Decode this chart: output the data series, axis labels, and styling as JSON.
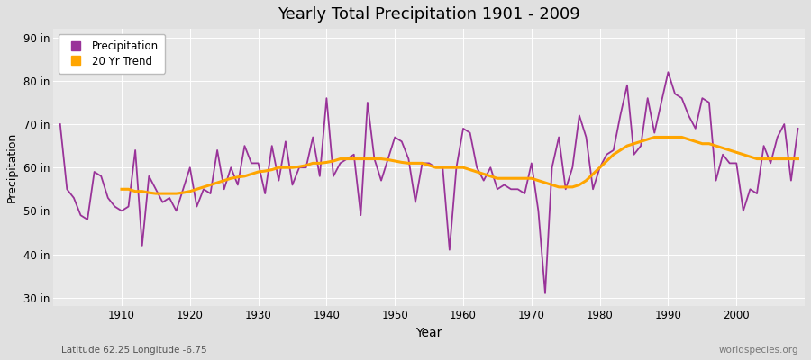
{
  "title": "Yearly Total Precipitation 1901 - 2009",
  "xlabel": "Year",
  "ylabel": "Precipitation",
  "bottom_left": "Latitude 62.25 Longitude -6.75",
  "bottom_right": "worldspecies.org",
  "precip_color": "#993399",
  "trend_color": "#FFA500",
  "fig_bg_color": "#E0E0E0",
  "plot_bg_color": "#E8E8E8",
  "ylim": [
    28,
    92
  ],
  "yticks": [
    30,
    40,
    50,
    60,
    70,
    80,
    90
  ],
  "ytick_labels": [
    "30 in",
    "40 in",
    "50 in",
    "60 in",
    "70 in",
    "80 in",
    "90 in"
  ],
  "xlim": [
    1900,
    2010
  ],
  "xticks": [
    1910,
    1920,
    1930,
    1940,
    1950,
    1960,
    1970,
    1980,
    1990,
    2000
  ],
  "years": [
    1901,
    1902,
    1903,
    1904,
    1905,
    1906,
    1907,
    1908,
    1909,
    1910,
    1911,
    1912,
    1913,
    1914,
    1915,
    1916,
    1917,
    1918,
    1919,
    1920,
    1921,
    1922,
    1923,
    1924,
    1925,
    1926,
    1927,
    1928,
    1929,
    1930,
    1931,
    1932,
    1933,
    1934,
    1935,
    1936,
    1937,
    1938,
    1939,
    1940,
    1941,
    1942,
    1943,
    1944,
    1945,
    1946,
    1947,
    1948,
    1949,
    1950,
    1951,
    1952,
    1953,
    1954,
    1955,
    1956,
    1957,
    1958,
    1959,
    1960,
    1961,
    1962,
    1963,
    1964,
    1965,
    1966,
    1967,
    1968,
    1969,
    1970,
    1971,
    1972,
    1973,
    1974,
    1975,
    1976,
    1977,
    1978,
    1979,
    1980,
    1981,
    1982,
    1983,
    1984,
    1985,
    1986,
    1987,
    1988,
    1989,
    1990,
    1991,
    1992,
    1993,
    1994,
    1995,
    1996,
    1997,
    1998,
    1999,
    2000,
    2001,
    2002,
    2003,
    2004,
    2005,
    2006,
    2007,
    2008,
    2009
  ],
  "precip": [
    70,
    55,
    53,
    49,
    48,
    59,
    58,
    53,
    51,
    50,
    51,
    64,
    42,
    58,
    55,
    52,
    53,
    50,
    55,
    60,
    51,
    55,
    54,
    64,
    55,
    60,
    56,
    65,
    61,
    61,
    54,
    65,
    57,
    66,
    56,
    60,
    60,
    67,
    58,
    76,
    58,
    61,
    62,
    63,
    49,
    75,
    62,
    57,
    62,
    67,
    66,
    62,
    52,
    61,
    61,
    60,
    60,
    41,
    60,
    69,
    68,
    60,
    57,
    60,
    55,
    56,
    55,
    55,
    54,
    61,
    50,
    31,
    60,
    67,
    55,
    60,
    72,
    67,
    55,
    60,
    63,
    64,
    72,
    79,
    63,
    65,
    76,
    68,
    75,
    82,
    77,
    76,
    72,
    69,
    76,
    75,
    57,
    63,
    61,
    61,
    50,
    55,
    54,
    65,
    61,
    67,
    70,
    57,
    69
  ],
  "trend_years": [
    1910,
    1911,
    1912,
    1913,
    1914,
    1915,
    1916,
    1917,
    1918,
    1919,
    1920,
    1921,
    1922,
    1923,
    1924,
    1925,
    1926,
    1927,
    1928,
    1929,
    1930,
    1931,
    1932,
    1933,
    1934,
    1935,
    1936,
    1937,
    1938,
    1939,
    1940,
    1941,
    1942,
    1943,
    1944,
    1945,
    1946,
    1947,
    1948,
    1949,
    1950,
    1951,
    1952,
    1953,
    1954,
    1955,
    1956,
    1957,
    1958,
    1959,
    1960,
    1961,
    1962,
    1963,
    1964,
    1965,
    1966,
    1967,
    1968,
    1969,
    1970,
    1971,
    1972,
    1973,
    1974,
    1975,
    1976,
    1977,
    1978,
    1979,
    1980,
    1981,
    1982,
    1983,
    1984,
    1985,
    1986,
    1987,
    1988,
    1989,
    1990,
    1991,
    1992,
    1993,
    1994,
    1995,
    1996,
    1997,
    1998,
    1999,
    2000,
    2001,
    2002,
    2003,
    2004,
    2005,
    2006,
    2007,
    2008,
    2009
  ],
  "trend": [
    55.0,
    55.0,
    54.5,
    54.5,
    54.2,
    54.0,
    54.0,
    54.0,
    54.0,
    54.2,
    54.5,
    55.0,
    55.5,
    56.0,
    56.5,
    57.0,
    57.5,
    57.8,
    58.0,
    58.5,
    59.0,
    59.2,
    59.5,
    60.0,
    60.0,
    60.0,
    60.2,
    60.5,
    61.0,
    61.0,
    61.2,
    61.5,
    62.0,
    62.0,
    62.0,
    62.0,
    62.0,
    62.0,
    62.0,
    61.8,
    61.5,
    61.2,
    61.0,
    61.0,
    61.0,
    60.5,
    60.0,
    60.0,
    60.0,
    60.0,
    60.0,
    59.5,
    59.0,
    58.5,
    58.0,
    57.5,
    57.5,
    57.5,
    57.5,
    57.5,
    57.5,
    57.0,
    56.5,
    56.0,
    55.5,
    55.5,
    55.5,
    56.0,
    57.0,
    58.5,
    60.0,
    61.5,
    63.0,
    64.0,
    65.0,
    65.5,
    66.0,
    66.5,
    67.0,
    67.0,
    67.0,
    67.0,
    67.0,
    66.5,
    66.0,
    65.5,
    65.5,
    65.0,
    64.5,
    64.0,
    63.5,
    63.0,
    62.5,
    62.0,
    62.0,
    62.0,
    62.0,
    62.0,
    62.0,
    62.0
  ]
}
